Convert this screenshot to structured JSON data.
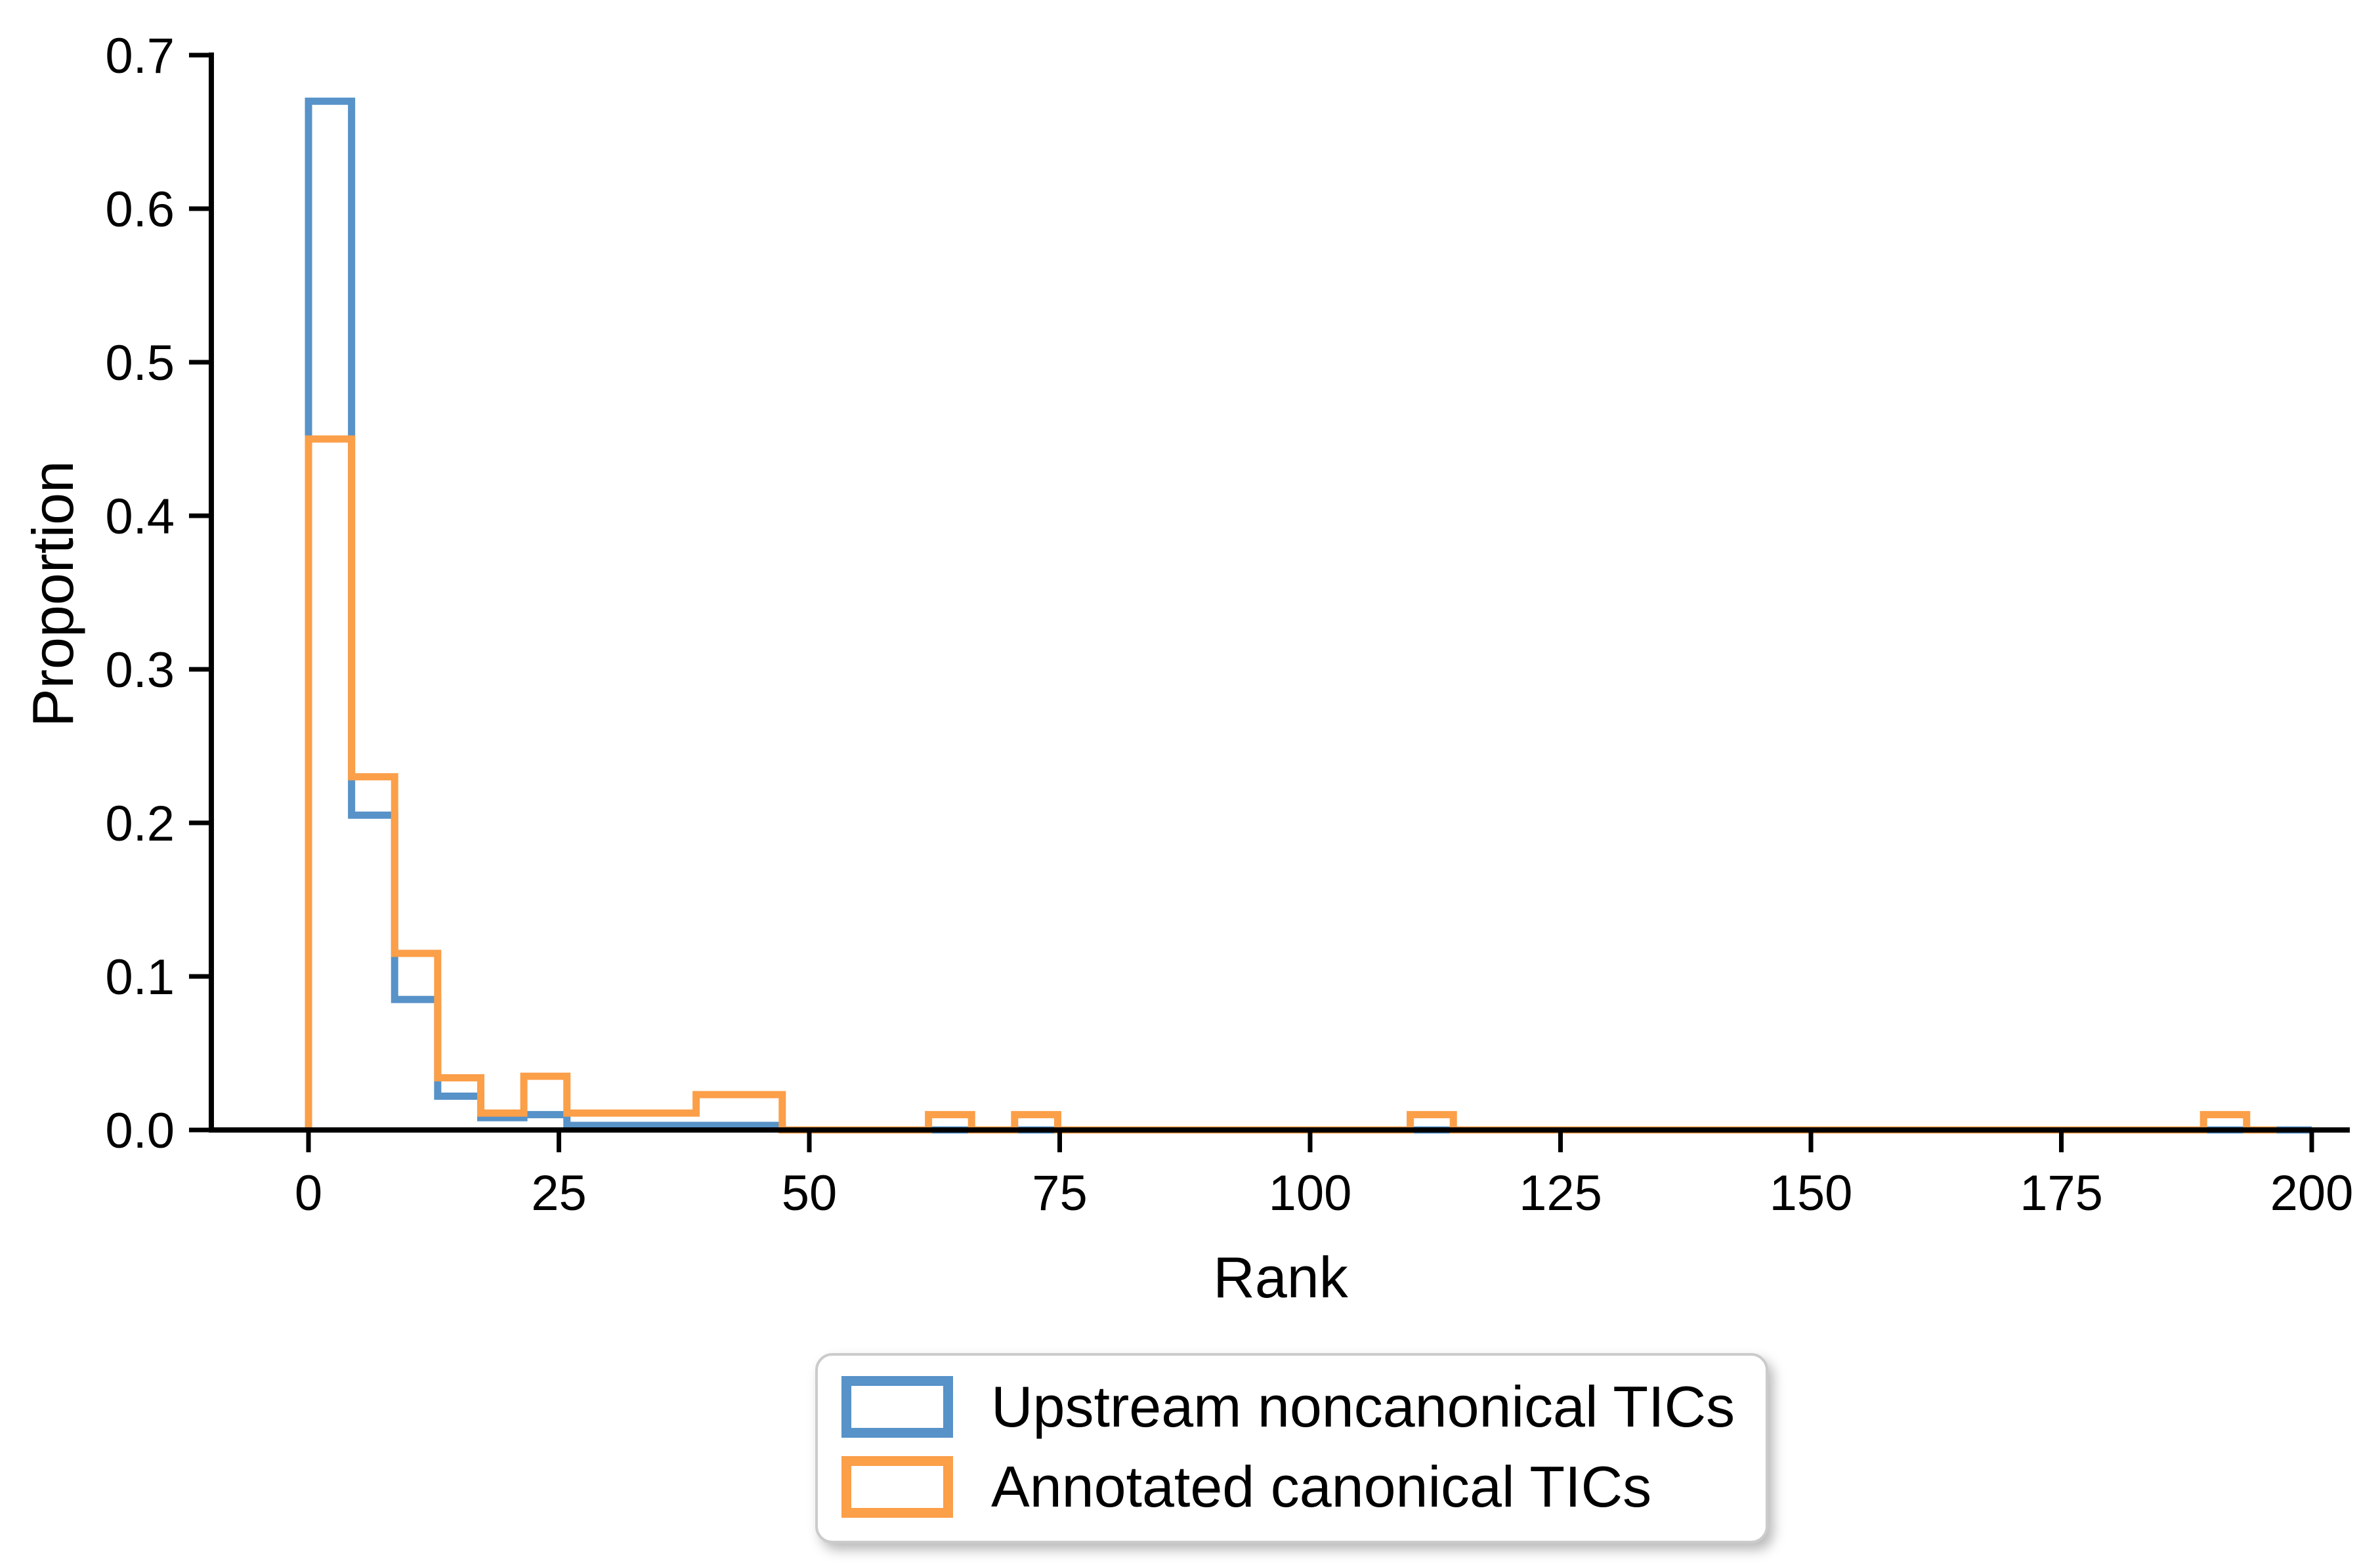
{
  "axes": {
    "xlabel": "Rank",
    "ylabel": "Proportion",
    "x_ticks": [
      0,
      25,
      50,
      75,
      100,
      125,
      150,
      175,
      200
    ],
    "y_ticks": [
      0.0,
      0.1,
      0.2,
      0.3,
      0.4,
      0.5,
      0.6,
      0.7
    ],
    "xlim": [
      -9.7,
      203.8
    ],
    "ylim": [
      0,
      0.7
    ]
  },
  "legend": {
    "items": [
      {
        "label": "Upstream noncanonical TICs",
        "color": "#5792C8"
      },
      {
        "label": "Annotated canonical TICs",
        "color": "#FB9F49"
      }
    ]
  },
  "chart_data": {
    "type": "histogram_step",
    "stat": "proportion",
    "title": "",
    "xlabel": "Rank",
    "ylabel": "Proportion",
    "xlim": [
      -9.7,
      203.8
    ],
    "ylim": [
      0,
      0.7
    ],
    "grid": false,
    "legend_position": "below-center",
    "bin_width": 4.3,
    "series": [
      {
        "name": "Upstream noncanonical TICs",
        "color": "#5792C8",
        "segments": [
          [
            0,
            4.3,
            0.67
          ],
          [
            4.3,
            8.6,
            0.205
          ],
          [
            8.6,
            12.9,
            0.085
          ],
          [
            12.9,
            17.2,
            0.022
          ],
          [
            17.2,
            21.5,
            0.008
          ],
          [
            21.5,
            25.8,
            0.01
          ],
          [
            25.8,
            47.3,
            0.003
          ],
          [
            47.3,
            200,
            0
          ]
        ]
      },
      {
        "name": "Annotated canonical TICs",
        "color": "#FB9F49",
        "segments": [
          [
            0,
            4.3,
            0.45
          ],
          [
            4.3,
            8.6,
            0.23
          ],
          [
            8.6,
            12.9,
            0.115
          ],
          [
            12.9,
            17.2,
            0.034
          ],
          [
            17.2,
            21.5,
            0.011
          ],
          [
            21.5,
            25.8,
            0.035
          ],
          [
            25.8,
            38.7,
            0.011
          ],
          [
            38.7,
            47.3,
            0.023
          ],
          [
            47.3,
            61.9,
            0
          ],
          [
            61.9,
            66.2,
            0.01
          ],
          [
            66.2,
            70.5,
            0
          ],
          [
            70.5,
            74.8,
            0.01
          ],
          [
            74.8,
            110.0,
            0
          ],
          [
            110.0,
            114.3,
            0.01
          ],
          [
            114.3,
            189.2,
            0
          ],
          [
            189.2,
            193.5,
            0.01
          ],
          [
            193.5,
            196.5,
            0
          ]
        ]
      }
    ]
  },
  "style": {
    "line_width": 11,
    "spine_width": 8,
    "tick_width": 7,
    "tick_length": 30,
    "tick_font_size": 76,
    "axis_color": "#000000"
  }
}
